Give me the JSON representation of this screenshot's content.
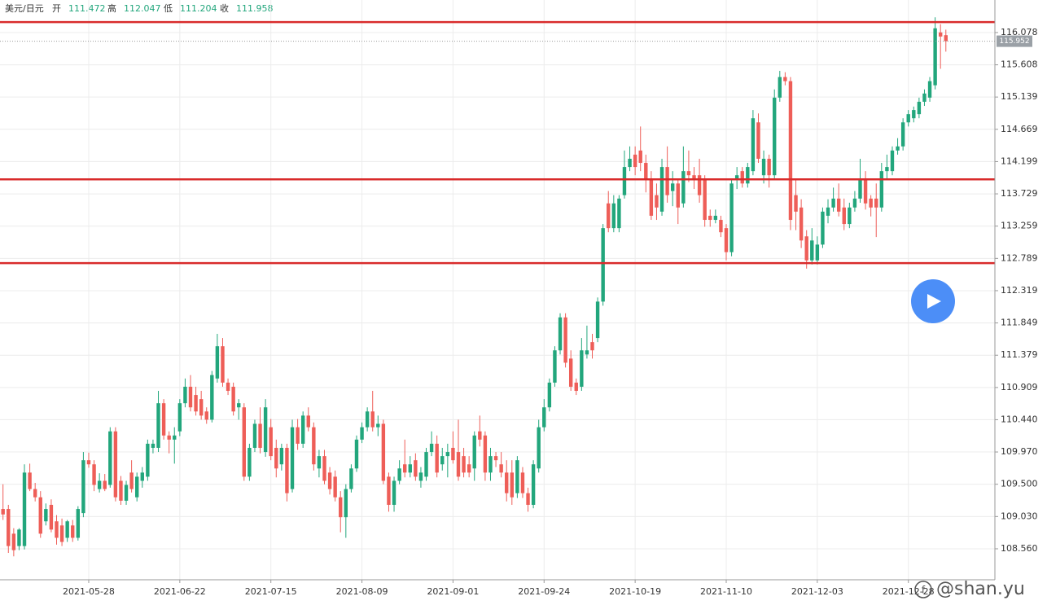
{
  "header": {
    "symbol": "美元/日元",
    "fields": [
      {
        "label": "开",
        "value": 111.472
      },
      {
        "label": "高",
        "value": 112.047
      },
      {
        "label": "低",
        "value": 111.204
      },
      {
        "label": "收",
        "value": 111.958
      }
    ]
  },
  "watermark": "@shan.yu",
  "chart_data": {
    "type": "candlestick",
    "categories": [
      null,
      null,
      null,
      null,
      null,
      null,
      null,
      null,
      null,
      null,
      null,
      null,
      null,
      null,
      null,
      null,
      "2021-05-28",
      null,
      null,
      null,
      null,
      null,
      null,
      null,
      null,
      null,
      null,
      null,
      null,
      null,
      null,
      null,
      null,
      "2021-06-22",
      null,
      null,
      null,
      null,
      null,
      null,
      null,
      null,
      null,
      null,
      null,
      null,
      null,
      null,
      null,
      null,
      "2021-07-15",
      null,
      null,
      null,
      null,
      null,
      null,
      null,
      null,
      null,
      null,
      null,
      null,
      null,
      null,
      null,
      null,
      "2021-08-09",
      null,
      null,
      null,
      null,
      null,
      null,
      null,
      null,
      null,
      null,
      null,
      null,
      null,
      null,
      null,
      null,
      "2021-09-01",
      null,
      null,
      null,
      null,
      null,
      null,
      null,
      null,
      null,
      null,
      null,
      null,
      null,
      null,
      null,
      null,
      "2021-09-24",
      null,
      null,
      null,
      null,
      null,
      null,
      null,
      null,
      null,
      null,
      null,
      null,
      null,
      null,
      null,
      null,
      "2021-10-19",
      null,
      null,
      null,
      null,
      null,
      null,
      null,
      null,
      null,
      null,
      null,
      null,
      null,
      null,
      null,
      null,
      "2021-11-10",
      null,
      null,
      null,
      null,
      null,
      null,
      null,
      null,
      null,
      null,
      null,
      null,
      null,
      null,
      null,
      null,
      "2021-12-03",
      null,
      null,
      null,
      null,
      null,
      null,
      null,
      null,
      null,
      null,
      null,
      null,
      null,
      null,
      null,
      null,
      "2021-12-28",
      null,
      null,
      null,
      null,
      null,
      null,
      null
    ],
    "open": [
      109.14,
      109.14,
      108.78,
      108.6,
      108.6,
      109.67,
      109.43,
      109.31,
      108.96,
      109.2,
      108.96,
      108.9,
      108.72,
      108.9,
      108.72,
      109.08,
      109.85,
      109.79,
      109.43,
      109.55,
      109.49,
      110.27,
      109.55,
      109.26,
      109.67,
      109.31,
      109.55,
      109.61,
      110.03,
      110.03,
      110.68,
      110.21,
      110.15,
      110.27,
      110.68,
      110.92,
      110.8,
      110.74,
      110.56,
      110.44,
      111.04,
      111.51,
      110.98,
      110.92,
      110.62,
      110.62,
      109.61,
      110.03,
      110.38,
      109.97,
      110.33,
      110.03,
      109.79,
      110.03,
      109.43,
      110.33,
      110.09,
      110.5,
      110.33,
      109.73,
      109.91,
      109.67,
      109.61,
      109.31,
      109.02,
      109.43,
      109.73,
      110.15,
      110.33,
      110.56,
      110.33,
      110.38,
      109.61,
      109.2,
      109.55,
      109.79,
      109.67,
      109.85,
      109.55,
      109.61,
      109.97,
      110.09,
      109.79,
      109.91,
      110.03,
      109.97,
      109.91,
      109.79,
      109.73,
      110.27,
      110.21,
      109.67,
      109.91,
      109.79,
      109.67,
      109.67,
      109.37,
      109.67,
      109.37,
      109.2,
      109.73,
      110.33,
      110.62,
      110.98,
      111.45,
      111.93,
      111.33,
      110.98,
      110.92,
      111.39,
      111.57,
      111.63,
      112.16,
      113.59,
      113.23,
      113.23,
      113.71,
      114.12,
      114.3,
      114.36,
      114.18,
      113.94,
      113.71,
      113.47,
      114.12,
      113.77,
      113.88,
      113.59,
      114.06,
      114.0,
      114.0,
      113.94,
      113.41,
      113.35,
      113.35,
      113.23,
      112.88,
      113.94,
      114.06,
      113.88,
      114.06,
      114.77,
      114.0,
      114.24,
      114.0,
      115.13,
      115.43,
      115.37,
      113.71,
      113.53,
      113.11,
      112.76,
      112.76,
      112.99,
      113.41,
      113.53,
      113.66,
      113.53,
      113.29,
      113.53,
      113.66,
      113.94,
      113.66,
      113.66,
      113.53,
      114.06,
      114.06,
      114.36,
      114.42,
      114.77,
      114.83,
      114.89,
      115.07,
      115.13,
      115.31,
      116.08,
      116.04
    ],
    "high": [
      109.5,
      109.2,
      108.86,
      108.86,
      109.79,
      109.8,
      109.52,
      109.4,
      109.22,
      109.28,
      109.05,
      109.0,
      108.98,
      108.98,
      109.18,
      109.97,
      109.96,
      109.85,
      109.66,
      109.65,
      110.33,
      110.33,
      109.62,
      109.55,
      109.85,
      109.67,
      109.75,
      110.15,
      110.15,
      110.86,
      110.74,
      110.27,
      110.33,
      110.74,
      111.04,
      111.09,
      110.92,
      110.86,
      110.62,
      111.15,
      111.69,
      111.63,
      111.04,
      110.98,
      110.74,
      110.68,
      110.09,
      110.44,
      110.62,
      110.74,
      110.45,
      110.15,
      110.09,
      110.09,
      110.44,
      110.45,
      110.56,
      110.62,
      110.4,
      110.0,
      110.0,
      109.75,
      109.7,
      109.4,
      109.5,
      109.79,
      110.21,
      110.4,
      110.62,
      110.86,
      110.5,
      110.44,
      109.67,
      109.61,
      109.85,
      110.15,
      109.91,
      109.95,
      109.75,
      110.03,
      110.27,
      110.21,
      110.03,
      110.09,
      110.27,
      110.44,
      110.03,
      109.91,
      110.27,
      110.5,
      110.27,
      110.03,
      109.97,
      109.97,
      109.85,
      109.85,
      109.91,
      109.75,
      109.45,
      109.85,
      110.44,
      110.74,
      111.04,
      111.51,
      111.99,
      111.99,
      111.45,
      111.04,
      111.63,
      111.81,
      111.69,
      112.22,
      113.29,
      113.77,
      113.71,
      113.71,
      114.36,
      114.42,
      114.42,
      114.71,
      114.3,
      114.06,
      113.88,
      114.24,
      114.42,
      114.06,
      113.94,
      114.42,
      114.36,
      114.12,
      114.24,
      114.0,
      113.5,
      113.5,
      113.41,
      113.29,
      113.94,
      114.12,
      114.12,
      114.18,
      114.95,
      114.9,
      114.36,
      114.3,
      115.25,
      115.52,
      115.5,
      115.43,
      113.94,
      113.65,
      113.2,
      113.23,
      113.11,
      113.53,
      113.65,
      113.82,
      113.88,
      113.66,
      113.6,
      113.77,
      114.24,
      114.06,
      113.71,
      113.88,
      114.18,
      114.3,
      114.42,
      114.54,
      114.83,
      114.95,
      115.0,
      115.13,
      115.25,
      115.43,
      116.3,
      116.2,
      116.12
    ],
    "low": [
      108.98,
      108.5,
      108.45,
      108.54,
      108.55,
      109.4,
      109.25,
      108.72,
      108.9,
      108.8,
      108.62,
      108.6,
      108.66,
      108.66,
      108.68,
      109.02,
      109.74,
      109.4,
      109.38,
      109.4,
      109.45,
      109.25,
      109.2,
      109.2,
      109.38,
      109.25,
      109.45,
      109.55,
      109.95,
      109.97,
      110.15,
      109.95,
      109.8,
      110.2,
      110.62,
      110.56,
      110.5,
      110.44,
      110.38,
      110.4,
      110.98,
      110.92,
      110.8,
      110.5,
      110.44,
      109.55,
      109.55,
      109.97,
      109.95,
      109.9,
      109.85,
      109.6,
      109.7,
      109.25,
      109.38,
      110.0,
      110.03,
      110.27,
      109.7,
      109.6,
      109.5,
      109.35,
      109.25,
      108.8,
      108.72,
      109.38,
      109.68,
      110.1,
      110.27,
      110.27,
      110.2,
      109.5,
      109.1,
      109.1,
      109.5,
      109.6,
      109.6,
      109.55,
      109.45,
      109.55,
      109.91,
      109.6,
      109.7,
      109.6,
      109.8,
      109.55,
      109.6,
      109.6,
      109.55,
      110.05,
      109.55,
      109.55,
      109.75,
      109.6,
      109.25,
      109.2,
      109.3,
      109.3,
      109.1,
      109.15,
      109.67,
      110.27,
      110.56,
      110.92,
      111.39,
      111.2,
      110.86,
      110.8,
      110.86,
      111.33,
      111.33,
      111.57,
      112.1,
      113.17,
      113.17,
      113.17,
      113.66,
      114.06,
      114.0,
      114.06,
      113.75,
      113.35,
      113.35,
      113.41,
      113.6,
      113.55,
      113.29,
      113.53,
      113.9,
      113.8,
      113.6,
      113.25,
      113.25,
      113.3,
      113.1,
      112.76,
      112.82,
      113.8,
      113.82,
      113.82,
      114.0,
      114.18,
      113.88,
      113.82,
      113.94,
      115.07,
      115.31,
      113.2,
      113.2,
      112.94,
      112.64,
      112.7,
      112.7,
      112.94,
      113.3,
      113.47,
      113.4,
      113.2,
      113.23,
      113.47,
      113.6,
      113.5,
      113.4,
      113.1,
      113.47,
      113.94,
      114.0,
      114.3,
      114.36,
      114.71,
      114.77,
      114.83,
      115.01,
      115.07,
      115.25,
      115.55,
      115.8
    ],
    "close": [
      109.06,
      108.6,
      108.54,
      108.84,
      109.67,
      109.43,
      109.31,
      108.78,
      109.14,
      108.84,
      108.72,
      108.66,
      108.96,
      108.72,
      109.14,
      109.85,
      109.79,
      109.49,
      109.55,
      109.43,
      110.27,
      109.31,
      109.26,
      109.49,
      109.43,
      109.61,
      109.67,
      110.09,
      110.09,
      110.68,
      110.21,
      110.15,
      110.21,
      110.68,
      110.92,
      110.62,
      110.56,
      110.5,
      110.44,
      111.09,
      111.51,
      110.98,
      110.86,
      110.56,
      110.68,
      109.61,
      110.03,
      110.38,
      110.03,
      110.62,
      109.91,
      109.73,
      110.03,
      109.37,
      110.33,
      110.09,
      110.5,
      110.33,
      109.79,
      109.91,
      109.55,
      109.43,
      109.31,
      109.02,
      109.43,
      109.73,
      110.15,
      110.33,
      110.56,
      110.33,
      110.38,
      109.55,
      109.2,
      109.55,
      109.73,
      109.67,
      109.79,
      109.61,
      109.67,
      109.97,
      110.09,
      109.67,
      109.91,
      109.97,
      109.85,
      109.61,
      109.67,
      109.67,
      110.21,
      110.15,
      109.67,
      109.91,
      109.85,
      109.67,
      109.37,
      109.31,
      109.85,
      109.37,
      109.2,
      109.79,
      110.33,
      110.62,
      110.98,
      111.45,
      111.93,
      111.27,
      110.92,
      110.86,
      111.45,
      111.45,
      111.45,
      112.16,
      113.23,
      113.23,
      113.59,
      113.66,
      114.12,
      114.24,
      114.12,
      114.18,
      113.94,
      113.41,
      113.53,
      114.12,
      113.71,
      113.88,
      113.53,
      114.06,
      114.0,
      113.94,
      113.71,
      113.35,
      113.35,
      113.41,
      113.17,
      112.88,
      113.88,
      114.0,
      113.88,
      114.12,
      114.83,
      114.24,
      114.24,
      114.0,
      115.13,
      115.43,
      115.37,
      113.35,
      113.47,
      113.05,
      112.76,
      113.05,
      112.99,
      113.47,
      113.53,
      113.66,
      113.47,
      113.29,
      113.53,
      113.66,
      113.94,
      113.59,
      113.53,
      113.53,
      114.06,
      114.12,
      114.36,
      114.42,
      114.77,
      114.89,
      114.95,
      115.07,
      115.19,
      115.37,
      116.14,
      116.02,
      115.952
    ],
    "up_color": "#22a67c",
    "down_color": "#ee5e58",
    "ylim": [
      108.109,
      116.552
    ],
    "yticks": [
      {
        "value": 108.56,
        "label": "108.560"
      },
      {
        "value": 109.03,
        "label": "109.030"
      },
      {
        "value": 109.5,
        "label": "109.500"
      },
      {
        "value": 109.97,
        "label": "109.970"
      },
      {
        "value": 110.44,
        "label": "110.440"
      },
      110.909,
      111.379,
      111.849,
      112.319,
      112.789,
      113.259,
      113.729,
      114.199,
      114.669,
      115.139,
      115.608,
      116.078
    ],
    "grid": true,
    "hlines": [
      116.23,
      113.94,
      112.72
    ],
    "hline_color": "#d92b2b"
  }
}
